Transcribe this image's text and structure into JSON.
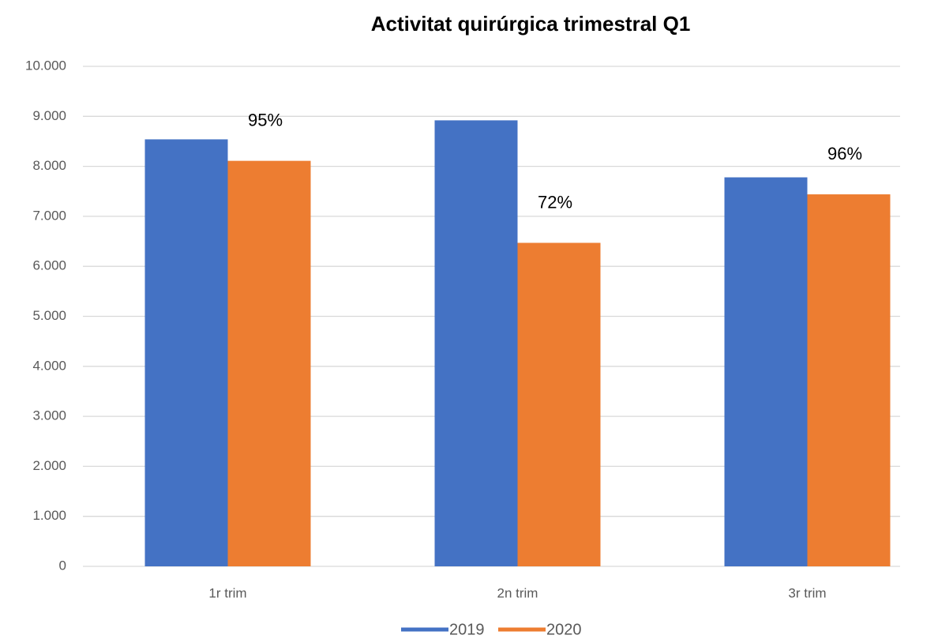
{
  "chart_data": {
    "type": "bar",
    "title": "Activitat quirúrgica trimestral Q1",
    "categories": [
      "1r trim",
      "2n trim",
      "3r trim"
    ],
    "series": [
      {
        "name": "2019",
        "color": "#4472c4",
        "values": [
          8540,
          8920,
          7780
        ]
      },
      {
        "name": "2020",
        "color": "#ed7d31",
        "values": [
          8110,
          6470,
          7440
        ]
      }
    ],
    "annotations": [
      "95%",
      "72%",
      "96%"
    ],
    "ylim": [
      0,
      10000
    ],
    "yticks": [
      0,
      {
        "value": 1000,
        "label": "1.000"
      },
      {
        "value": 2000,
        "label": "2.000"
      },
      {
        "value": 3000,
        "label": "3.000"
      },
      {
        "value": 4000,
        "label": "4.000"
      },
      {
        "value": 5000,
        "label": "5.000"
      },
      {
        "value": 6000,
        "label": "6.000"
      },
      {
        "value": 7000,
        "label": "7.000"
      },
      {
        "value": 8000,
        "label": "8.000"
      },
      {
        "value": 9000,
        "label": "9.000"
      },
      {
        "value": 10000,
        "label": "10.000"
      }
    ],
    "grid": true,
    "legend": "bottom"
  }
}
